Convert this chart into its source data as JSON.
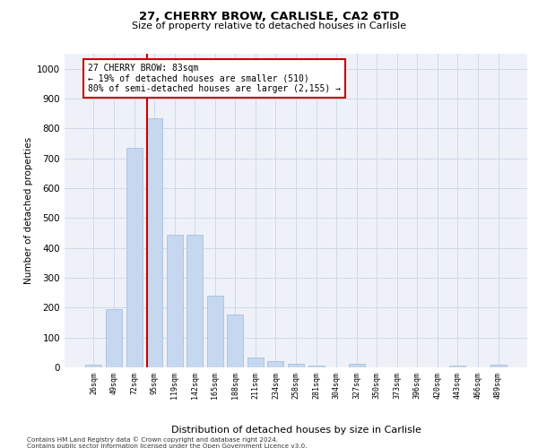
{
  "title_line1": "27, CHERRY BROW, CARLISLE, CA2 6TD",
  "title_line2": "Size of property relative to detached houses in Carlisle",
  "xlabel": "Distribution of detached houses by size in Carlisle",
  "ylabel": "Number of detached properties",
  "categories": [
    "26sqm",
    "49sqm",
    "72sqm",
    "95sqm",
    "119sqm",
    "142sqm",
    "165sqm",
    "188sqm",
    "211sqm",
    "234sqm",
    "258sqm",
    "281sqm",
    "304sqm",
    "327sqm",
    "350sqm",
    "373sqm",
    "396sqm",
    "420sqm",
    "443sqm",
    "466sqm",
    "489sqm"
  ],
  "values": [
    10,
    195,
    735,
    835,
    445,
    445,
    240,
    178,
    32,
    22,
    13,
    5,
    0,
    12,
    0,
    0,
    0,
    0,
    7,
    0,
    8
  ],
  "bar_color": "#c5d8f0",
  "bar_edge_color": "#a0b8d8",
  "vline_x": 2.65,
  "vline_color": "#cc0000",
  "annotation_text": "27 CHERRY BROW: 83sqm\n← 19% of detached houses are smaller (510)\n80% of semi-detached houses are larger (2,155) →",
  "annotation_box_color": "#ffffff",
  "annotation_box_edge": "#cc0000",
  "ylim": [
    0,
    1050
  ],
  "yticks": [
    0,
    100,
    200,
    300,
    400,
    500,
    600,
    700,
    800,
    900,
    1000
  ],
  "grid_color": "#d0d8e8",
  "background_color": "#eef2f8",
  "footer_line1": "Contains HM Land Registry data © Crown copyright and database right 2024.",
  "footer_line2": "Contains public sector information licensed under the Open Government Licence v3.0."
}
